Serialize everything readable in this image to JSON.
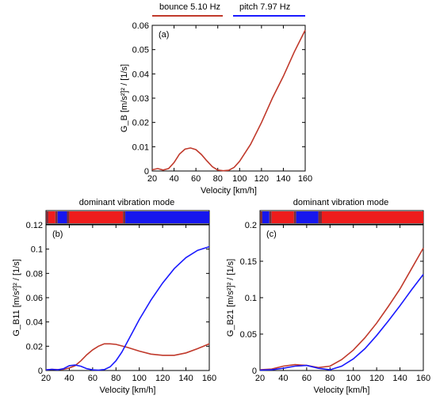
{
  "legend": {
    "items": [
      {
        "label": "bounce  5.10 Hz",
        "color": "#c0392b"
      },
      {
        "label": "pitch  7.97 Hz",
        "color": "#1a1aff"
      }
    ]
  },
  "colors": {
    "bounce": "#c0392b",
    "pitch": "#1a1aff",
    "band_red": "#ee1c1c",
    "band_blue": "#1616ee",
    "band_dark": "#7a2e3a"
  },
  "chart_data": [
    {
      "type": "line",
      "panel_label": "(a)",
      "xlabel": "Velocity [km/h]",
      "ylabel": "G_B [m/s²]² / [1/s]",
      "xlim": [
        20,
        160
      ],
      "ylim": [
        0,
        0.06
      ],
      "xticks": [
        20,
        40,
        60,
        80,
        100,
        120,
        140,
        160
      ],
      "yticks": [
        0,
        0.01,
        0.02,
        0.03,
        0.04,
        0.05,
        0.06
      ],
      "grid": false,
      "series": [
        {
          "name": "bounce  5.10 Hz",
          "color": "#c0392b",
          "x": [
            20,
            25,
            30,
            35,
            40,
            45,
            50,
            55,
            60,
            65,
            70,
            75,
            80,
            85,
            90,
            95,
            100,
            110,
            120,
            130,
            140,
            150,
            160
          ],
          "y": [
            0.0005,
            0.001,
            0.0004,
            0.001,
            0.0035,
            0.007,
            0.009,
            0.0095,
            0.0088,
            0.0068,
            0.0042,
            0.0018,
            0.0004,
            0.0001,
            0.0003,
            0.0015,
            0.004,
            0.011,
            0.02,
            0.03,
            0.039,
            0.049,
            0.058
          ]
        }
      ]
    },
    {
      "type": "line",
      "panel_label": "(b)",
      "band_title": "dominant vibration mode",
      "xlabel": "Velocity [km/h]",
      "ylabel": "G_B11 [m/s²]² / [1/s]",
      "xlim": [
        20,
        160
      ],
      "ylim": [
        0,
        0.12
      ],
      "xticks": [
        20,
        40,
        60,
        80,
        100,
        120,
        140,
        160
      ],
      "yticks": [
        0,
        0.02,
        0.04,
        0.06,
        0.08,
        0.1,
        0.12
      ],
      "grid": false,
      "dominant_mode_bands": [
        {
          "from": 20,
          "to": 22,
          "mode": "dark"
        },
        {
          "from": 22,
          "to": 28,
          "mode": "bounce"
        },
        {
          "from": 28,
          "to": 30,
          "mode": "dark"
        },
        {
          "from": 30,
          "to": 38,
          "mode": "pitch"
        },
        {
          "from": 38,
          "to": 40,
          "mode": "dark"
        },
        {
          "from": 40,
          "to": 86,
          "mode": "bounce"
        },
        {
          "from": 86,
          "to": 88,
          "mode": "dark"
        },
        {
          "from": 88,
          "to": 160,
          "mode": "pitch"
        }
      ],
      "series": [
        {
          "name": "bounce  5.10 Hz",
          "color": "#c0392b",
          "x": [
            20,
            25,
            30,
            35,
            40,
            45,
            50,
            55,
            60,
            65,
            70,
            75,
            80,
            90,
            100,
            110,
            120,
            130,
            140,
            150,
            160
          ],
          "y": [
            0.0005,
            0.001,
            0.0008,
            0.001,
            0.002,
            0.004,
            0.008,
            0.013,
            0.017,
            0.02,
            0.022,
            0.022,
            0.0215,
            0.019,
            0.016,
            0.0135,
            0.0125,
            0.0125,
            0.0145,
            0.018,
            0.022
          ]
        },
        {
          "name": "pitch  7.97 Hz",
          "color": "#1a1aff",
          "x": [
            20,
            25,
            30,
            35,
            40,
            45,
            50,
            55,
            60,
            65,
            70,
            75,
            80,
            85,
            90,
            95,
            100,
            110,
            120,
            130,
            140,
            150,
            160
          ],
          "y": [
            0.0005,
            0.001,
            0.0005,
            0.0015,
            0.004,
            0.0045,
            0.0035,
            0.0015,
            0.0005,
            0.0003,
            0.0008,
            0.003,
            0.008,
            0.015,
            0.024,
            0.033,
            0.042,
            0.058,
            0.072,
            0.084,
            0.093,
            0.099,
            0.102
          ]
        }
      ]
    },
    {
      "type": "line",
      "panel_label": "(c)",
      "band_title": "dominant vibration mode",
      "xlabel": "Velocity [km/h]",
      "ylabel": "G_B21 [m/s²]² / [1/s]",
      "xlim": [
        20,
        160
      ],
      "ylim": [
        0,
        0.2
      ],
      "xticks": [
        20,
        40,
        60,
        80,
        100,
        120,
        140,
        160
      ],
      "yticks": [
        0,
        0.05,
        0.1,
        0.15,
        0.2
      ],
      "grid": false,
      "dominant_mode_bands": [
        {
          "from": 20,
          "to": 22,
          "mode": "dark"
        },
        {
          "from": 22,
          "to": 28,
          "mode": "pitch"
        },
        {
          "from": 28,
          "to": 30,
          "mode": "dark"
        },
        {
          "from": 30,
          "to": 49,
          "mode": "bounce"
        },
        {
          "from": 49,
          "to": 51,
          "mode": "dark"
        },
        {
          "from": 51,
          "to": 70,
          "mode": "pitch"
        },
        {
          "from": 70,
          "to": 73,
          "mode": "dark"
        },
        {
          "from": 73,
          "to": 160,
          "mode": "bounce"
        }
      ],
      "series": [
        {
          "name": "bounce  5.10 Hz",
          "color": "#c0392b",
          "x": [
            20,
            30,
            40,
            50,
            60,
            70,
            80,
            90,
            100,
            110,
            120,
            130,
            140,
            150,
            160
          ],
          "y": [
            0.001,
            0.002,
            0.006,
            0.008,
            0.007,
            0.004,
            0.006,
            0.015,
            0.028,
            0.045,
            0.065,
            0.088,
            0.112,
            0.14,
            0.168
          ]
        },
        {
          "name": "pitch  7.97 Hz",
          "color": "#1a1aff",
          "x": [
            20,
            30,
            40,
            50,
            60,
            70,
            80,
            90,
            100,
            110,
            120,
            130,
            140,
            150,
            160
          ],
          "y": [
            0.0005,
            0.001,
            0.003,
            0.006,
            0.007,
            0.003,
            0.001,
            0.006,
            0.016,
            0.03,
            0.048,
            0.068,
            0.089,
            0.111,
            0.132
          ]
        }
      ]
    }
  ]
}
